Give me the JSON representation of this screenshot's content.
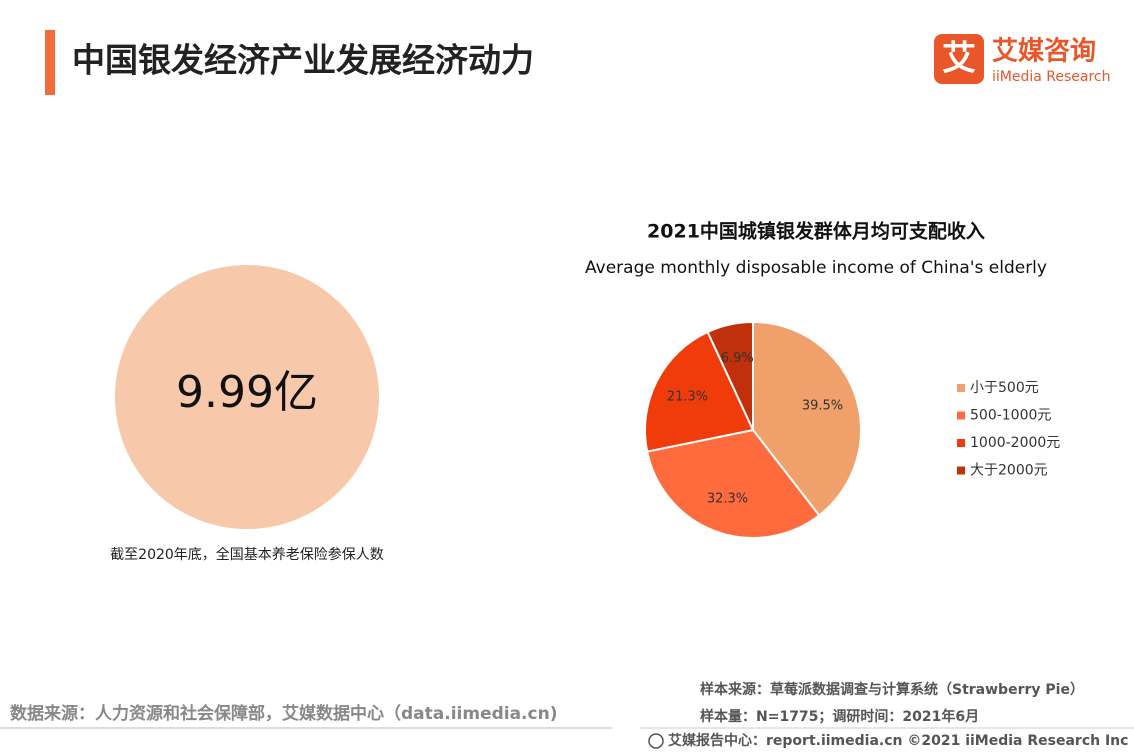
{
  "header": {
    "title": "中国银发经济产业发展经济动力",
    "logo_mark": "艾",
    "logo_name": "艾媒咨询",
    "logo_sub": "iiMedia Research"
  },
  "stat": {
    "value_text": "9.99亿",
    "caption": "截至2020年底，全国基本养老保险参保人数"
  },
  "chart_data": {
    "type": "pie",
    "title": "2021中国城镇银发群体月均可支配收入",
    "subtitle": "Average monthly disposable income of China's elderly",
    "categories": [
      "小于500元",
      "500-1000元",
      "1000-2000元",
      "大于2000元"
    ],
    "values": [
      39.5,
      32.3,
      21.3,
      6.9
    ],
    "value_labels": [
      "39.5%",
      "32.3%",
      "21.3%",
      "6.9%"
    ],
    "colors": [
      "#f0a06a",
      "#ff6b3d",
      "#f03c0a",
      "#c0300a"
    ],
    "legend": "right"
  },
  "footer": {
    "source": "数据来源：人力资源和社会保障部，艾媒数据中心（data.iimedia.cn)",
    "sample_source": "样本来源：草莓派数据调查与计算系统（Strawberry Pie）",
    "sample_size": "样本量：N=1775；调研时间：2021年6月",
    "copyright": "艾媒报告中心：report.iimedia.cn  ©2021  iiMedia Research  Inc"
  }
}
